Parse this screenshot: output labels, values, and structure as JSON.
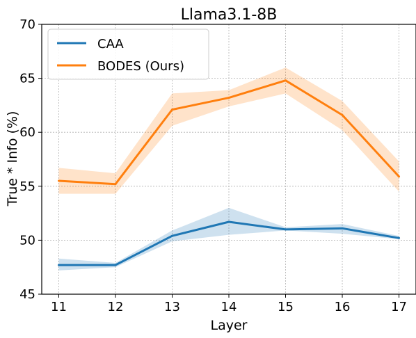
{
  "chart_data": {
    "type": "line",
    "title": "Llama3.1-8B",
    "xlabel": "Layer",
    "ylabel": "True * Info (%)",
    "x": [
      11,
      12,
      13,
      14,
      15,
      16,
      17
    ],
    "xlim": [
      10.7,
      17.3
    ],
    "ylim": [
      45,
      70
    ],
    "xticks": [
      11,
      12,
      13,
      14,
      15,
      16,
      17
    ],
    "yticks": [
      45,
      50,
      55,
      60,
      65,
      70
    ],
    "grid": true,
    "legend_position": "top-left",
    "series": [
      {
        "name": "CAA",
        "color": "#1f77b4",
        "values": [
          47.7,
          47.7,
          50.4,
          51.7,
          51.0,
          51.1,
          50.2
        ],
        "band_lower": [
          47.2,
          47.5,
          49.9,
          50.5,
          50.9,
          50.6,
          50.1
        ],
        "band_upper": [
          48.3,
          47.9,
          50.9,
          53.0,
          51.2,
          51.5,
          50.4
        ]
      },
      {
        "name": "BODES (Ours)",
        "color": "#ff7f0e",
        "values": [
          55.5,
          55.2,
          62.1,
          63.2,
          64.8,
          61.6,
          55.9
        ],
        "band_lower": [
          54.3,
          54.3,
          60.6,
          62.4,
          63.6,
          60.2,
          54.5
        ],
        "band_upper": [
          56.7,
          56.2,
          63.6,
          63.9,
          66.0,
          62.9,
          57.3
        ]
      }
    ]
  }
}
